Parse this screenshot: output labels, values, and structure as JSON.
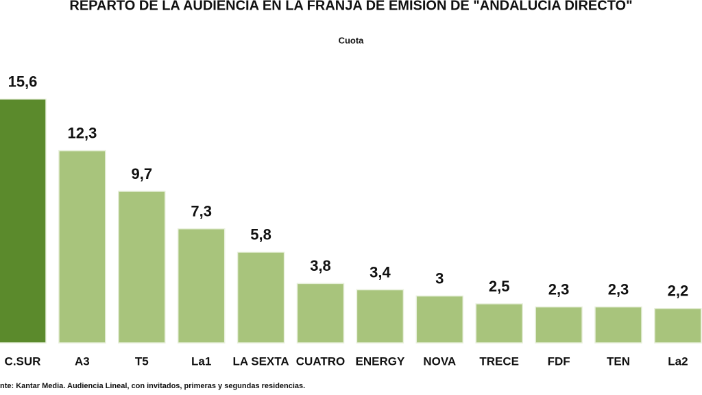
{
  "chart_data": {
    "type": "bar",
    "title": "REPARTO DE LA AUDIENCIA EN LA FRANJA DE EMISION DE \"ANDALUCIA DIRECTO\"",
    "subtitle": "Cuota",
    "categories": [
      "C.SUR",
      "A3",
      "T5",
      "La1",
      "LA SEXTA",
      "CUATRO",
      "ENERGY",
      "NOVA",
      "TRECE",
      "FDF",
      "TEN",
      "La2"
    ],
    "values": [
      15.6,
      12.3,
      9.7,
      7.3,
      5.8,
      3.8,
      3.4,
      3,
      2.5,
      2.3,
      2.3,
      2.2
    ],
    "value_labels": [
      "15,6",
      "12,3",
      "9,7",
      "7,3",
      "5,8",
      "3,8",
      "3,4",
      "3",
      "2,5",
      "2,3",
      "2,3",
      "2,2"
    ],
    "colors": [
      "#5b8a2c",
      "#a8c47c",
      "#a8c47c",
      "#a8c47c",
      "#a8c47c",
      "#a8c47c",
      "#a8c47c",
      "#a8c47c",
      "#a8c47c",
      "#a8c47c",
      "#a8c47c",
      "#a8c47c"
    ],
    "ylim": [
      0,
      16.5
    ],
    "source": "nte: Kantar Media. Audiencia Lineal, con invitados, primeras y segundas residencias."
  }
}
